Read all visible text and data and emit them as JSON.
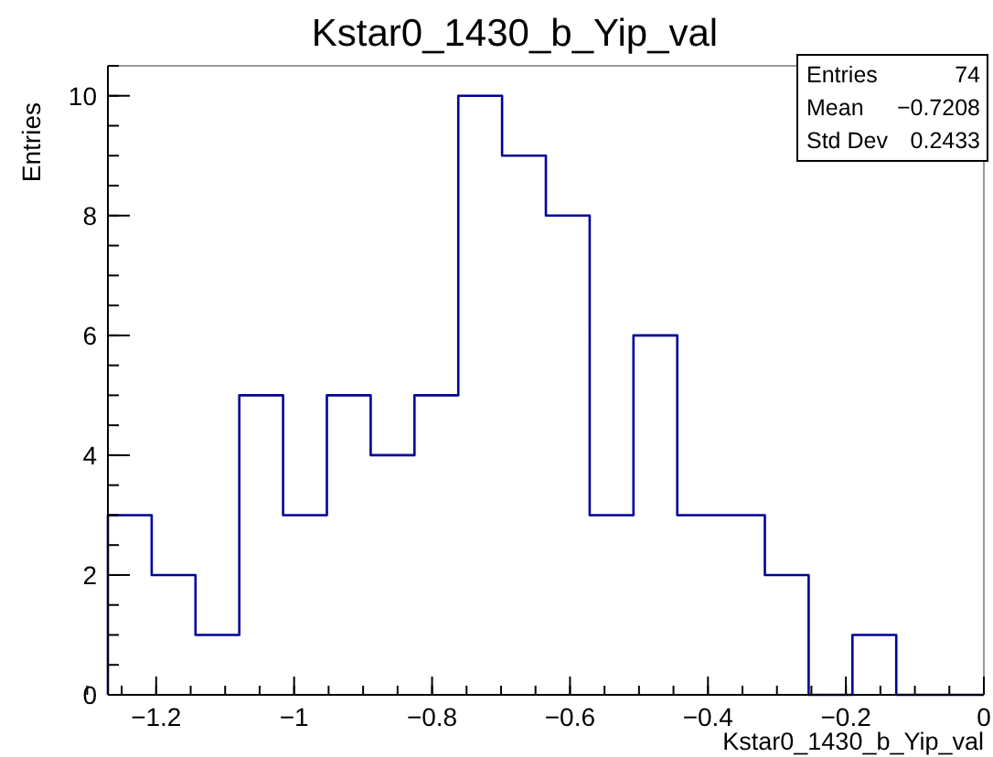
{
  "chart_data": {
    "type": "histogram",
    "title": "Kstar0_1430_b_Yip_val",
    "xlabel": "Kstar0_1430_b_Yip_val",
    "ylabel": "Entries",
    "bins": [
      -1.27,
      -1.2065,
      -1.143,
      -1.0795,
      -1.016,
      -0.9525,
      -0.889,
      -0.8255,
      -0.762,
      -0.6985,
      -0.635,
      -0.5715,
      -0.508,
      -0.4445,
      -0.381,
      -0.3175,
      -0.254,
      -0.1905,
      -0.127,
      -0.0635,
      0
    ],
    "values": [
      3,
      2,
      1,
      5,
      3,
      5,
      4,
      5,
      10,
      9,
      8,
      3,
      6,
      3,
      3,
      2,
      0,
      1,
      0,
      0
    ],
    "color": "#000099",
    "xlim": [
      -1.27,
      0
    ],
    "ylim": [
      0,
      10.5
    ],
    "xticks": [
      {
        "value": -1.2,
        "label": "−1.2"
      },
      {
        "value": -1,
        "label": "−1"
      },
      {
        "value": -0.8,
        "label": "−0.8"
      },
      {
        "value": -0.6,
        "label": "−0.6"
      },
      {
        "value": -0.4,
        "label": "−0.4"
      },
      {
        "value": -0.2,
        "label": "−0.2"
      },
      0
    ],
    "yticks": [
      0,
      2,
      4,
      6,
      8,
      10
    ],
    "grid": false,
    "annotations": [
      "Entries",
      "74",
      "Mean",
      "−0.7208",
      "Std Dev",
      "0.2433"
    ]
  }
}
